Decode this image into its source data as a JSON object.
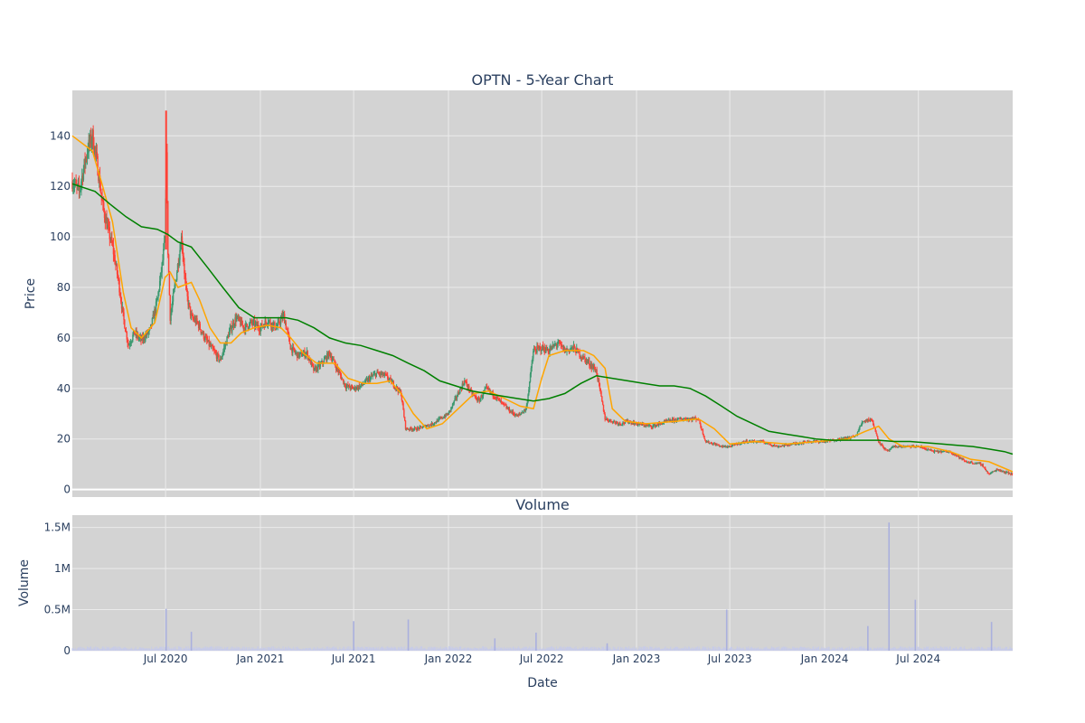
{
  "chart_data": [
    {
      "type": "candlestick",
      "title": "OPTN - 5-Year Chart",
      "xlabel": "",
      "ylabel": "Price",
      "ylim": [
        -3,
        158
      ],
      "x_range": [
        "2020-01-02",
        "2024-12-31"
      ],
      "x_ticks": [
        {
          "date": "2020-07-01",
          "label": "Jul 2020"
        },
        {
          "date": "2021-01-01",
          "label": "Jan 2021"
        },
        {
          "date": "2021-07-01",
          "label": "Jul 2021"
        },
        {
          "date": "2022-01-01",
          "label": "Jan 2022"
        },
        {
          "date": "2022-07-01",
          "label": "Jul 2022"
        },
        {
          "date": "2023-01-01",
          "label": "Jan 2023"
        },
        {
          "date": "2023-07-01",
          "label": "Jul 2023"
        },
        {
          "date": "2024-01-01",
          "label": "Jan 2024"
        },
        {
          "date": "2024-07-01",
          "label": "Jul 2024"
        }
      ],
      "y_ticks": [
        0,
        20,
        40,
        60,
        80,
        100,
        120,
        140
      ],
      "grid": true,
      "colors": {
        "increasing": "#3d9970",
        "decreasing": "#ff4136",
        "ma_short": "#ffa500",
        "ma_long": "#008000",
        "plot_bg": "#d3d3d3",
        "grid": "#ffffff"
      },
      "price": [
        [
          "2020-01-02",
          122
        ],
        [
          "2020-01-15",
          118
        ],
        [
          "2020-02-01",
          135
        ],
        [
          "2020-02-10",
          140
        ],
        [
          "2020-02-20",
          128
        ],
        [
          "2020-03-01",
          112
        ],
        [
          "2020-03-10",
          104
        ],
        [
          "2020-03-20",
          96
        ],
        [
          "2020-04-01",
          82
        ],
        [
          "2020-04-10",
          68
        ],
        [
          "2020-04-20",
          57
        ],
        [
          "2020-05-01",
          62
        ],
        [
          "2020-05-15",
          59
        ],
        [
          "2020-06-01",
          63
        ],
        [
          "2020-06-15",
          75
        ],
        [
          "2020-06-25",
          90
        ],
        [
          "2020-07-01",
          101
        ],
        [
          "2020-07-02",
          148
        ],
        [
          "2020-07-05",
          98
        ],
        [
          "2020-07-10",
          68
        ],
        [
          "2020-07-20",
          82
        ],
        [
          "2020-08-01",
          100
        ],
        [
          "2020-08-10",
          78
        ],
        [
          "2020-08-20",
          68
        ],
        [
          "2020-09-01",
          66
        ],
        [
          "2020-09-15",
          60
        ],
        [
          "2020-10-01",
          55
        ],
        [
          "2020-10-15",
          51
        ],
        [
          "2020-11-01",
          62
        ],
        [
          "2020-11-15",
          68
        ],
        [
          "2020-12-01",
          64
        ],
        [
          "2020-12-15",
          66
        ],
        [
          "2021-01-01",
          64
        ],
        [
          "2021-01-15",
          67
        ],
        [
          "2021-02-01",
          64
        ],
        [
          "2021-02-15",
          69
        ],
        [
          "2021-03-01",
          56
        ],
        [
          "2021-03-15",
          53
        ],
        [
          "2021-04-01",
          54
        ],
        [
          "2021-04-15",
          47
        ],
        [
          "2021-05-01",
          50
        ],
        [
          "2021-05-15",
          54
        ],
        [
          "2021-06-01",
          47
        ],
        [
          "2021-06-15",
          41
        ],
        [
          "2021-07-01",
          40
        ],
        [
          "2021-07-15",
          41
        ],
        [
          "2021-08-01",
          44
        ],
        [
          "2021-08-15",
          46
        ],
        [
          "2021-09-01",
          45
        ],
        [
          "2021-09-15",
          42
        ],
        [
          "2021-10-01",
          38
        ],
        [
          "2021-10-10",
          24
        ],
        [
          "2021-11-01",
          24
        ],
        [
          "2021-12-01",
          26
        ],
        [
          "2022-01-01",
          30
        ],
        [
          "2022-01-15",
          36
        ],
        [
          "2022-02-01",
          43
        ],
        [
          "2022-02-15",
          38
        ],
        [
          "2022-03-01",
          35
        ],
        [
          "2022-03-15",
          40
        ],
        [
          "2022-04-01",
          37
        ],
        [
          "2022-04-15",
          34
        ],
        [
          "2022-05-01",
          31
        ],
        [
          "2022-05-15",
          29
        ],
        [
          "2022-06-01",
          32
        ],
        [
          "2022-06-15",
          55
        ],
        [
          "2022-07-01",
          56
        ],
        [
          "2022-07-15",
          55
        ],
        [
          "2022-08-01",
          58
        ],
        [
          "2022-08-15",
          55
        ],
        [
          "2022-09-01",
          56
        ],
        [
          "2022-09-15",
          53
        ],
        [
          "2022-10-01",
          50
        ],
        [
          "2022-10-15",
          47
        ],
        [
          "2022-11-01",
          28
        ],
        [
          "2022-11-15",
          27
        ],
        [
          "2022-12-01",
          26
        ],
        [
          "2022-12-15",
          27
        ],
        [
          "2023-01-01",
          26
        ],
        [
          "2023-02-01",
          25
        ],
        [
          "2023-03-01",
          27
        ],
        [
          "2023-04-01",
          28
        ],
        [
          "2023-05-01",
          28
        ],
        [
          "2023-05-15",
          19
        ],
        [
          "2023-06-01",
          18
        ],
        [
          "2023-06-15",
          17
        ],
        [
          "2023-07-01",
          17
        ],
        [
          "2023-07-15",
          18
        ],
        [
          "2023-08-01",
          19
        ],
        [
          "2023-09-01",
          19
        ],
        [
          "2023-10-01",
          17
        ],
        [
          "2023-11-01",
          18
        ],
        [
          "2023-12-01",
          19
        ],
        [
          "2024-01-01",
          19
        ],
        [
          "2024-02-01",
          20
        ],
        [
          "2024-03-01",
          21
        ],
        [
          "2024-03-15",
          27
        ],
        [
          "2024-04-01",
          28
        ],
        [
          "2024-04-15",
          19
        ],
        [
          "2024-05-01",
          15
        ],
        [
          "2024-05-15",
          17
        ],
        [
          "2024-06-01",
          17
        ],
        [
          "2024-07-01",
          17
        ],
        [
          "2024-08-01",
          15
        ],
        [
          "2024-09-01",
          15
        ],
        [
          "2024-10-01",
          11
        ],
        [
          "2024-11-01",
          10
        ],
        [
          "2024-11-15",
          6
        ],
        [
          "2024-12-01",
          8
        ],
        [
          "2024-12-15",
          7
        ],
        [
          "2024-12-31",
          6
        ]
      ],
      "ma_short": [
        [
          "2020-01-02",
          140
        ],
        [
          "2020-02-10",
          134
        ],
        [
          "2020-03-01",
          120
        ],
        [
          "2020-03-20",
          106
        ],
        [
          "2020-04-10",
          78
        ],
        [
          "2020-04-25",
          64
        ],
        [
          "2020-05-15",
          60
        ],
        [
          "2020-06-10",
          66
        ],
        [
          "2020-06-30",
          84
        ],
        [
          "2020-07-10",
          86
        ],
        [
          "2020-07-25",
          80
        ],
        [
          "2020-08-20",
          82
        ],
        [
          "2020-09-05",
          75
        ],
        [
          "2020-09-25",
          64
        ],
        [
          "2020-10-15",
          58
        ],
        [
          "2020-11-05",
          58
        ],
        [
          "2020-11-25",
          62
        ],
        [
          "2020-12-20",
          64
        ],
        [
          "2021-01-15",
          65
        ],
        [
          "2021-02-10",
          64
        ],
        [
          "2021-03-01",
          60
        ],
        [
          "2021-03-25",
          54
        ],
        [
          "2021-04-20",
          50
        ],
        [
          "2021-05-25",
          50
        ],
        [
          "2021-06-20",
          44
        ],
        [
          "2021-07-20",
          42
        ],
        [
          "2021-08-15",
          42
        ],
        [
          "2021-09-10",
          43
        ],
        [
          "2021-10-01",
          38
        ],
        [
          "2021-10-25",
          30
        ],
        [
          "2021-11-20",
          24
        ],
        [
          "2021-12-20",
          26
        ],
        [
          "2022-01-20",
          32
        ],
        [
          "2022-02-20",
          38
        ],
        [
          "2022-03-20",
          39
        ],
        [
          "2022-04-20",
          36
        ],
        [
          "2022-05-20",
          33
        ],
        [
          "2022-06-15",
          32
        ],
        [
          "2022-07-01",
          44
        ],
        [
          "2022-07-15",
          53
        ],
        [
          "2022-08-15",
          55
        ],
        [
          "2022-09-20",
          55
        ],
        [
          "2022-10-10",
          53
        ],
        [
          "2022-11-01",
          48
        ],
        [
          "2022-11-15",
          32
        ],
        [
          "2022-12-10",
          27
        ],
        [
          "2023-01-20",
          26
        ],
        [
          "2023-03-20",
          27
        ],
        [
          "2023-05-01",
          28
        ],
        [
          "2023-06-01",
          24
        ],
        [
          "2023-07-01",
          18
        ],
        [
          "2023-08-20",
          19
        ],
        [
          "2023-10-20",
          18
        ],
        [
          "2023-12-20",
          19
        ],
        [
          "2024-02-15",
          20
        ],
        [
          "2024-03-20",
          23
        ],
        [
          "2024-04-15",
          25
        ],
        [
          "2024-05-05",
          20
        ],
        [
          "2024-06-01",
          17
        ],
        [
          "2024-07-20",
          17
        ],
        [
          "2024-09-01",
          15
        ],
        [
          "2024-10-10",
          12
        ],
        [
          "2024-11-15",
          11
        ],
        [
          "2024-12-31",
          7
        ]
      ],
      "ma_long": [
        [
          "2020-01-02",
          121
        ],
        [
          "2020-02-15",
          118
        ],
        [
          "2020-03-15",
          113
        ],
        [
          "2020-04-15",
          108
        ],
        [
          "2020-05-15",
          104
        ],
        [
          "2020-06-15",
          103
        ],
        [
          "2020-07-05",
          101
        ],
        [
          "2020-07-25",
          98
        ],
        [
          "2020-08-20",
          96
        ],
        [
          "2020-09-20",
          88
        ],
        [
          "2020-10-20",
          80
        ],
        [
          "2020-11-20",
          72
        ],
        [
          "2020-12-20",
          68
        ],
        [
          "2021-01-20",
          68
        ],
        [
          "2021-02-20",
          68
        ],
        [
          "2021-03-15",
          67
        ],
        [
          "2021-04-15",
          64
        ],
        [
          "2021-05-15",
          60
        ],
        [
          "2021-06-15",
          58
        ],
        [
          "2021-07-15",
          57
        ],
        [
          "2021-08-15",
          55
        ],
        [
          "2021-09-15",
          53
        ],
        [
          "2021-10-15",
          50
        ],
        [
          "2021-11-15",
          47
        ],
        [
          "2021-12-15",
          43
        ],
        [
          "2022-01-15",
          41
        ],
        [
          "2022-02-15",
          39
        ],
        [
          "2022-03-15",
          38
        ],
        [
          "2022-04-15",
          37
        ],
        [
          "2022-05-15",
          36
        ],
        [
          "2022-06-15",
          35
        ],
        [
          "2022-07-15",
          36
        ],
        [
          "2022-08-15",
          38
        ],
        [
          "2022-09-15",
          42
        ],
        [
          "2022-10-15",
          45
        ],
        [
          "2022-11-15",
          44
        ],
        [
          "2022-12-15",
          43
        ],
        [
          "2023-01-15",
          42
        ],
        [
          "2023-02-15",
          41
        ],
        [
          "2023-03-15",
          41
        ],
        [
          "2023-04-15",
          40
        ],
        [
          "2023-05-15",
          37
        ],
        [
          "2023-06-15",
          33
        ],
        [
          "2023-07-15",
          29
        ],
        [
          "2023-08-15",
          26
        ],
        [
          "2023-09-15",
          23
        ],
        [
          "2023-10-15",
          22
        ],
        [
          "2023-11-15",
          21
        ],
        [
          "2023-12-15",
          20
        ],
        [
          "2024-01-15",
          19.5
        ],
        [
          "2024-02-15",
          19.5
        ],
        [
          "2024-03-15",
          19.5
        ],
        [
          "2024-04-15",
          19.5
        ],
        [
          "2024-05-15",
          19
        ],
        [
          "2024-06-15",
          19
        ],
        [
          "2024-07-15",
          18.5
        ],
        [
          "2024-08-15",
          18
        ],
        [
          "2024-09-15",
          17.5
        ],
        [
          "2024-10-15",
          17
        ],
        [
          "2024-11-15",
          16
        ],
        [
          "2024-12-15",
          15
        ],
        [
          "2024-12-31",
          14
        ]
      ]
    },
    {
      "type": "bar",
      "title": "Volume",
      "xlabel": "Date",
      "ylabel": "Volume",
      "ylim": [
        0,
        1650000
      ],
      "y_ticks": [
        {
          "value": 0,
          "label": "0"
        },
        {
          "value": 500000,
          "label": "0.5M"
        },
        {
          "value": 1000000,
          "label": "1M"
        },
        {
          "value": 1500000,
          "label": "1.5M"
        }
      ],
      "colors": {
        "bar": "#c7cbe8",
        "spike": "#aab0de"
      },
      "baseline_volume": 30000,
      "spikes": [
        [
          "2020-07-02",
          510000
        ],
        [
          "2020-08-20",
          230000
        ],
        [
          "2021-07-01",
          360000
        ],
        [
          "2021-10-15",
          380000
        ],
        [
          "2022-04-01",
          150000
        ],
        [
          "2022-06-20",
          220000
        ],
        [
          "2022-11-05",
          90000
        ],
        [
          "2023-06-25",
          500000
        ],
        [
          "2024-03-25",
          300000
        ],
        [
          "2024-05-05",
          1560000
        ],
        [
          "2024-06-25",
          620000
        ],
        [
          "2024-11-20",
          350000
        ]
      ]
    }
  ]
}
